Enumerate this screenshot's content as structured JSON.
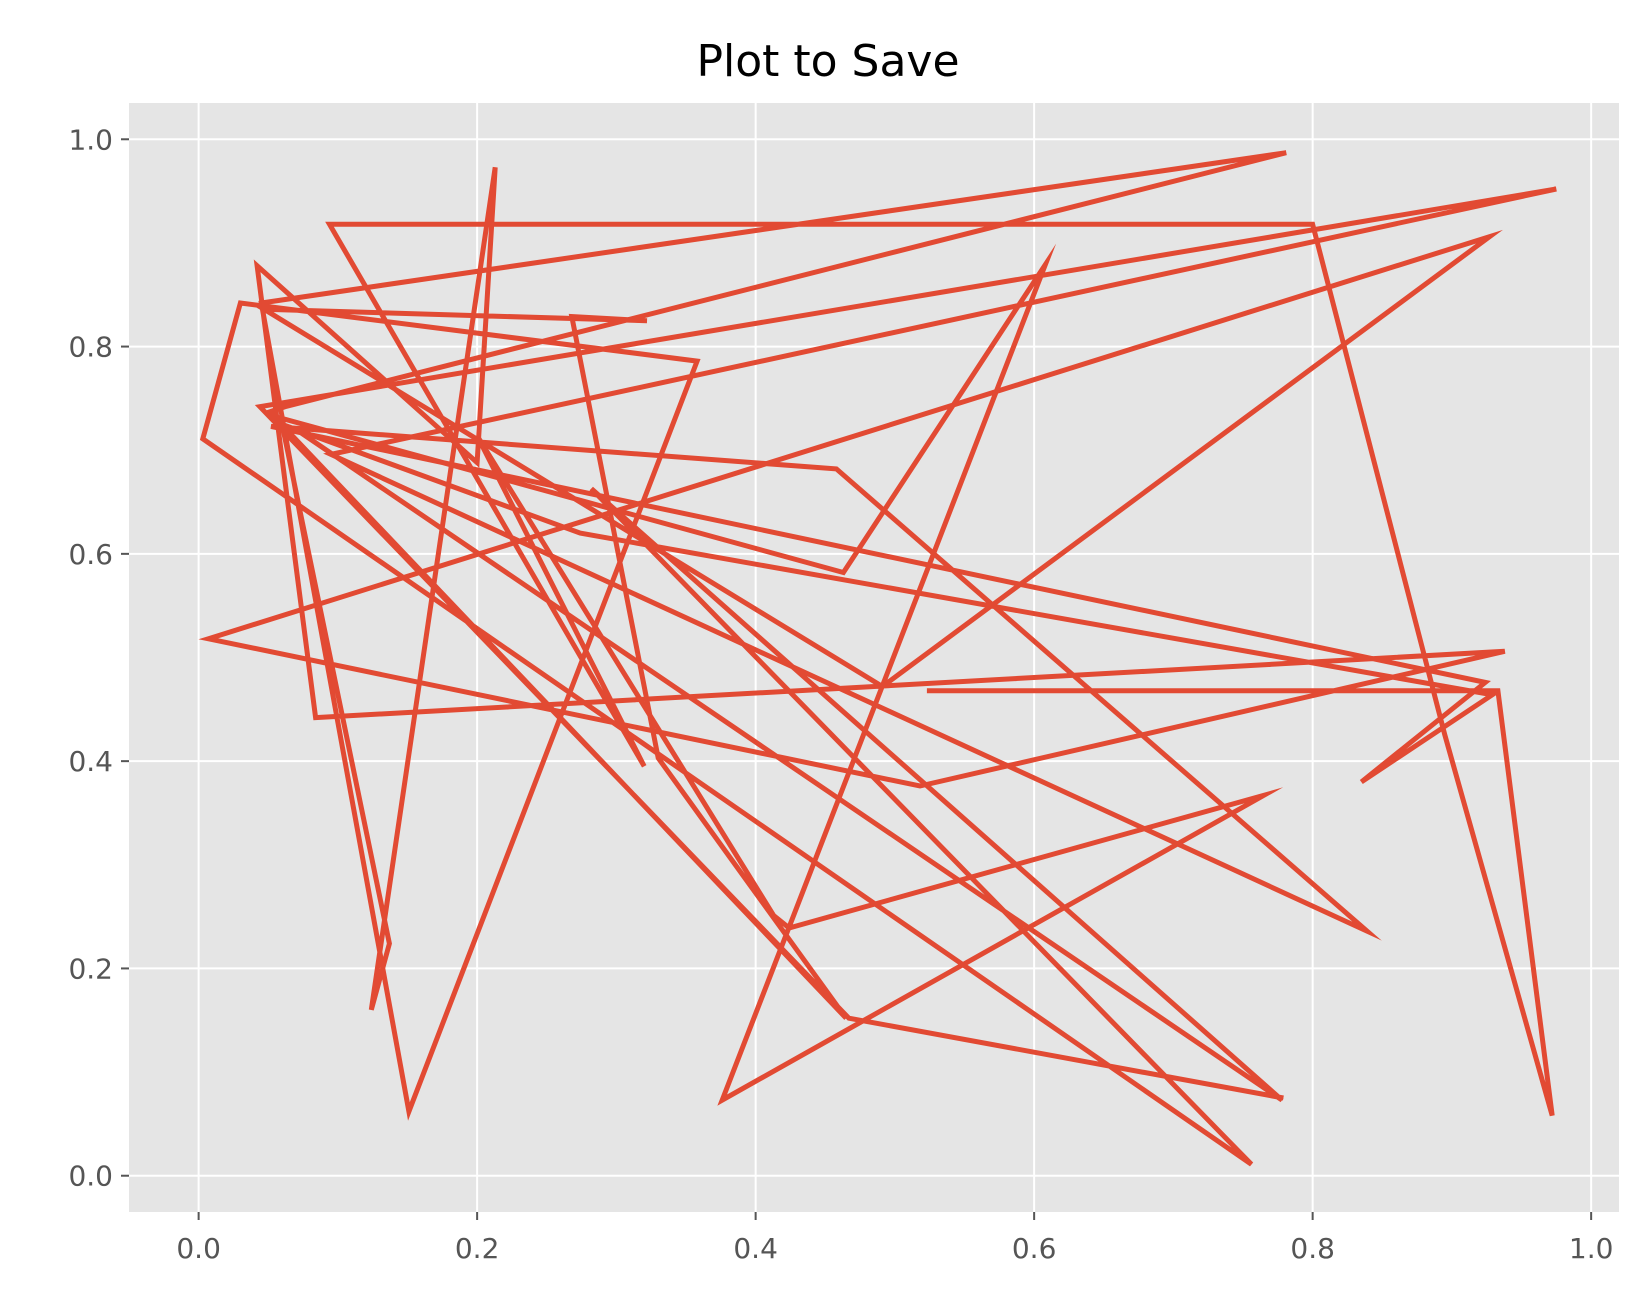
{
  "chart_data": {
    "type": "line",
    "title": "Plot to Save",
    "xlabel": "",
    "ylabel": "",
    "xlim": [
      -0.05,
      1.02
    ],
    "ylim": [
      -0.035,
      1.035
    ],
    "grid": true,
    "style": "ggplot",
    "x_ticks": [
      0.0,
      0.2,
      0.4,
      0.6,
      0.8,
      1.0
    ],
    "x_tick_labels": [
      "0.0",
      "0.2",
      "0.4",
      "0.6",
      "0.8",
      "1.0"
    ],
    "y_ticks": [
      0.0,
      0.2,
      0.4,
      0.6,
      0.8,
      1.0
    ],
    "y_tick_labels": [
      "0.0",
      "0.2",
      "0.4",
      "0.6",
      "0.8",
      "1.0"
    ],
    "colors": {
      "line": "#E24A33",
      "plot_bg": "#E5E5E5",
      "grid": "#FFFFFF",
      "tick": "#555555",
      "title": "#000000"
    },
    "series": [
      {
        "x": [
          0.523,
          0.933,
          0.972,
          0.895,
          0.8,
          0.094,
          0.32,
          0.2,
          0.413,
          0.424,
          0.765,
          0.376,
          0.608,
          0.463,
          0.059,
          0.137,
          0.124,
          0.213,
          0.2,
          0.042,
          0.084,
          0.938,
          0.518,
          0.007,
          0.927,
          0.491,
          0.047,
          0.322,
          0.268,
          0.33,
          0.465,
          0.051,
          0.062,
          0.781,
          0.045,
          0.151,
          0.358,
          0.03,
          0.003,
          0.756,
          0.282,
          0.778,
          0.07,
          0.274,
          0.929,
          0.835,
          0.924,
          0.052,
          0.458,
          0.839,
          0.095,
          0.975,
          0.044,
          0.467,
          0.779
        ],
        "y": [
          0.468,
          0.468,
          0.058,
          0.425,
          0.918,
          0.918,
          0.395,
          0.714,
          0.251,
          0.239,
          0.367,
          0.073,
          0.879,
          0.582,
          0.731,
          0.224,
          0.16,
          0.973,
          0.688,
          0.878,
          0.442,
          0.506,
          0.376,
          0.518,
          0.906,
          0.472,
          0.836,
          0.825,
          0.829,
          0.403,
          0.152,
          0.737,
          0.742,
          0.987,
          0.842,
          0.062,
          0.786,
          0.842,
          0.711,
          0.011,
          0.663,
          0.073,
          0.72,
          0.62,
          0.464,
          0.38,
          0.476,
          0.723,
          0.682,
          0.236,
          0.696,
          0.952,
          0.742,
          0.152,
          0.075
        ]
      }
    ]
  }
}
